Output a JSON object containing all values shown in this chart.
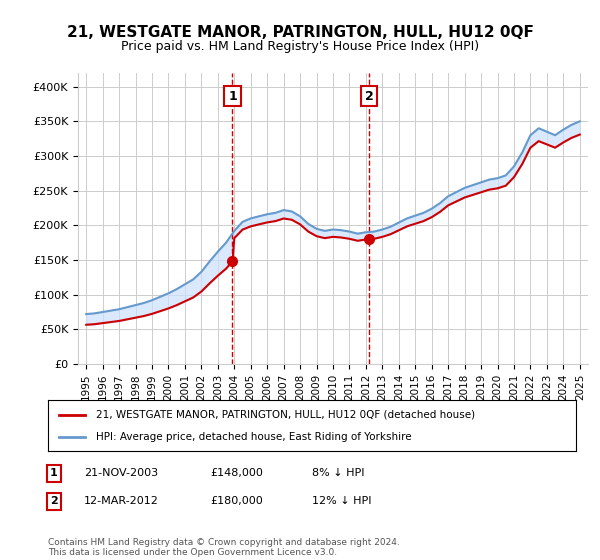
{
  "title": "21, WESTGATE MANOR, PATRINGTON, HULL, HU12 0QF",
  "subtitle": "Price paid vs. HM Land Registry's House Price Index (HPI)",
  "legend_line1": "21, WESTGATE MANOR, PATRINGTON, HULL, HU12 0QF (detached house)",
  "legend_line2": "HPI: Average price, detached house, East Riding of Yorkshire",
  "footnote": "Contains HM Land Registry data © Crown copyright and database right 2024.\nThis data is licensed under the Open Government Licence v3.0.",
  "sale1_label": "1",
  "sale1_date": "21-NOV-2003",
  "sale1_price": "£148,000",
  "sale1_hpi": "8% ↓ HPI",
  "sale2_label": "2",
  "sale2_date": "12-MAR-2012",
  "sale2_price": "£180,000",
  "sale2_hpi": "12% ↓ HPI",
  "red_color": "#cc0000",
  "blue_color": "#6699cc",
  "fill_color": "#cce0ff",
  "background_color": "#ffffff",
  "grid_color": "#cccccc",
  "sale1_x": 2003.89,
  "sale1_y": 148000,
  "sale2_x": 2012.19,
  "sale2_y": 180000,
  "ylim": [
    0,
    420000
  ],
  "xlim": [
    1994.5,
    2025.5
  ],
  "yticks": [
    0,
    50000,
    100000,
    150000,
    200000,
    250000,
    300000,
    350000,
    400000
  ],
  "ytick_labels": [
    "£0",
    "£50K",
    "£100K",
    "£150K",
    "£200K",
    "£250K",
    "£300K",
    "£350K",
    "£400K"
  ],
  "xticks": [
    1995,
    1996,
    1997,
    1998,
    1999,
    2000,
    2001,
    2002,
    2003,
    2004,
    2005,
    2006,
    2007,
    2008,
    2009,
    2010,
    2011,
    2012,
    2013,
    2014,
    2015,
    2016,
    2017,
    2018,
    2019,
    2020,
    2021,
    2022,
    2023,
    2024,
    2025
  ]
}
